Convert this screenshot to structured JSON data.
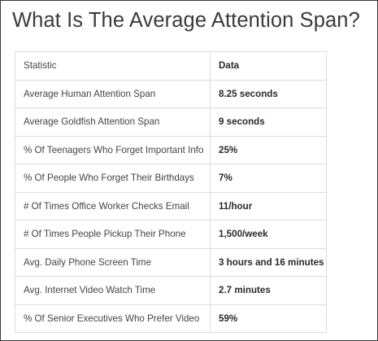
{
  "title": "What Is The Average Attention Span?",
  "table": {
    "header": {
      "statistic": "Statistic",
      "data": "Data"
    },
    "rows": [
      {
        "statistic": "Average Human Attention Span",
        "data": "8.25 seconds"
      },
      {
        "statistic": "Average Goldfish Attention Span",
        "data": "9 seconds"
      },
      {
        "statistic": "% Of Teenagers Who Forget Important Info",
        "data": "25%"
      },
      {
        "statistic": "% Of People Who Forget Their Birthdays",
        "data": "7%"
      },
      {
        "statistic": "# Of Times Office Worker Checks Email",
        "data": "11/hour"
      },
      {
        "statistic": "# Of Times People Pickup Their Phone",
        "data": "1,500/week"
      },
      {
        "statistic": "Avg. Daily Phone Screen Time",
        "data": "3 hours and 16 minutes"
      },
      {
        "statistic": "Avg. Internet Video Watch Time",
        "data": "2.7 minutes"
      },
      {
        "statistic": "% Of Senior Executives Who Prefer Video",
        "data": "59%"
      }
    ]
  }
}
